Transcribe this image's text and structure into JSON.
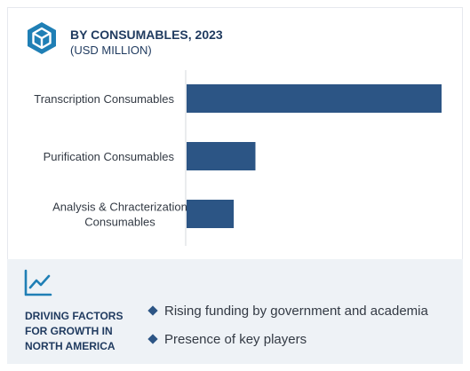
{
  "header": {
    "title": "BY CONSUMABLES, 2023",
    "subtitle": "(USD MILLION)",
    "icon": "hexagon-cube-icon",
    "accent": "#1f7fb5"
  },
  "chart_data": {
    "type": "bar",
    "orientation": "horizontal",
    "categories": [
      [
        "Transcription Consumables"
      ],
      [
        "Purification Consumables"
      ],
      [
        "Analysis & Chracterization",
        "Consumables"
      ]
    ],
    "values": [
      100,
      27,
      18.5
    ],
    "xlim": [
      0,
      100
    ],
    "axis_values_shown": false,
    "bar_color": "#2c5585",
    "grid": false
  },
  "footer": {
    "icon": "trend-line-icon",
    "title_lines": [
      "DRIVING FACTORS",
      "FOR GROWTH IN",
      "NORTH AMERICA"
    ],
    "bullets": [
      "Rising funding by government and academia",
      "Presence of key players"
    ]
  }
}
